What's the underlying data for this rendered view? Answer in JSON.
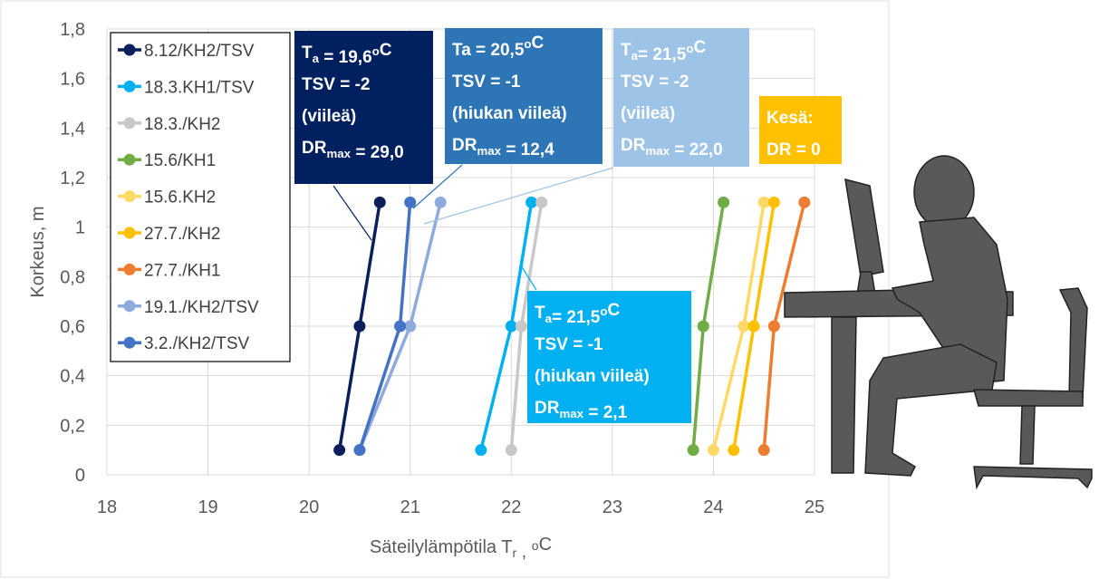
{
  "chart_data": {
    "type": "line",
    "xlabel": [
      "Säteilylämpötila T",
      {
        "sub": "r"
      },
      " , ",
      {
        "sup": "o"
      },
      "C"
    ],
    "ylabel": [
      "Korkeus, m"
    ],
    "xlim": [
      18,
      25
    ],
    "xticks": [
      18,
      19,
      20,
      21,
      22,
      23,
      24,
      25
    ],
    "ylim": [
      0,
      1.8
    ],
    "yticks": [
      0,
      {
        "value": 0.2,
        "label": "0,2"
      },
      {
        "value": 0.4,
        "label": "0,4"
      },
      {
        "value": 0.6,
        "label": "0,6"
      },
      {
        "value": 0.8,
        "label": "0,8"
      },
      1,
      {
        "value": 1.2,
        "label": "1,2"
      },
      {
        "value": 1.4,
        "label": "1,4"
      },
      {
        "value": 1.6,
        "label": "1,6"
      },
      {
        "value": 1.8,
        "label": "1,8"
      }
    ],
    "grid": true,
    "legend": "upper left",
    "series": [
      {
        "name": "8.12/KH2/TSV",
        "color": "#0b1f5c",
        "x": [
          20.3,
          20.5,
          20.7
        ],
        "values": [
          0.1,
          0.6,
          1.1
        ]
      },
      {
        "name": "18.3.KH1/TSV",
        "color": "#00b0f0",
        "x": [
          21.7,
          22.0,
          22.2
        ],
        "values": [
          0.1,
          0.6,
          1.1
        ]
      },
      {
        "name": "18.3./KH2",
        "color": "#c8c8c8",
        "x": [
          22.0,
          22.1,
          22.3
        ],
        "values": [
          0.1,
          0.6,
          1.1
        ]
      },
      {
        "name": "15.6/KH1",
        "color": "#70ad47",
        "x": [
          23.8,
          23.9,
          24.1
        ],
        "values": [
          0.1,
          0.6,
          1.1
        ]
      },
      {
        "name": "15.6.KH2",
        "color": "#ffd966",
        "x": [
          24.0,
          24.3,
          24.5
        ],
        "values": [
          0.1,
          0.6,
          1.1
        ]
      },
      {
        "name": "27.7./KH2",
        "color": "#ffc000",
        "x": [
          24.2,
          24.4,
          24.6
        ],
        "values": [
          0.1,
          0.6,
          1.1
        ]
      },
      {
        "name": "27.7./KH1",
        "color": "#ed7d31",
        "x": [
          24.5,
          24.6,
          24.9
        ],
        "values": [
          0.1,
          0.6,
          1.1
        ]
      },
      {
        "name": "19.1./KH2/TSV",
        "color": "#8faadc",
        "x": [
          20.5,
          21.0,
          21.3
        ],
        "values": [
          0.1,
          0.6,
          1.1
        ]
      },
      {
        "name": "3.2./KH2/TSV",
        "color": "#4472c4",
        "x": [
          20.5,
          20.9,
          21.0
        ],
        "values": [
          0.1,
          0.6,
          1.1
        ]
      }
    ],
    "annotations": [
      {
        "color": "#002060",
        "lines": [
          [
            "T",
            {
              "sub": "a"
            },
            " = 19,6",
            {
              "sup": "o"
            },
            "C"
          ],
          [
            "TSV = -2"
          ],
          [
            "(viileä)"
          ],
          [
            "DR",
            {
              "sub": "max"
            },
            " = 29,0"
          ]
        ]
      },
      {
        "color": "#2e75b6",
        "lines": [
          [
            "Ta = 20,5",
            {
              "sup": "o"
            },
            "C"
          ],
          [
            "TSV = -1"
          ],
          [
            "(hiukan viileä)"
          ],
          [
            "DR",
            {
              "sub": "max"
            },
            " = 12,4"
          ]
        ]
      },
      {
        "color": "#9dc3e6",
        "lines": [
          [
            "T",
            {
              "sub": "a"
            },
            "= 21,5",
            {
              "sup": "o"
            },
            "C"
          ],
          [
            "TSV = -2"
          ],
          [
            "(viileä)"
          ],
          [
            "DR",
            {
              "sub": "max"
            },
            " = 22,0"
          ]
        ]
      },
      {
        "color": "#ffc000",
        "lines": [
          [
            "Kesä:"
          ],
          [
            "DR = 0"
          ]
        ]
      },
      {
        "color": "#00b0f0",
        "lines": [
          [
            "T",
            {
              "sub": "a"
            },
            "= 21,5",
            {
              "sup": "o"
            },
            "C"
          ],
          [
            "TSV = -1"
          ],
          [
            "(hiukan viileä)"
          ],
          [
            "DR",
            {
              "sub": "max"
            },
            " = 2,1"
          ]
        ]
      }
    ]
  }
}
